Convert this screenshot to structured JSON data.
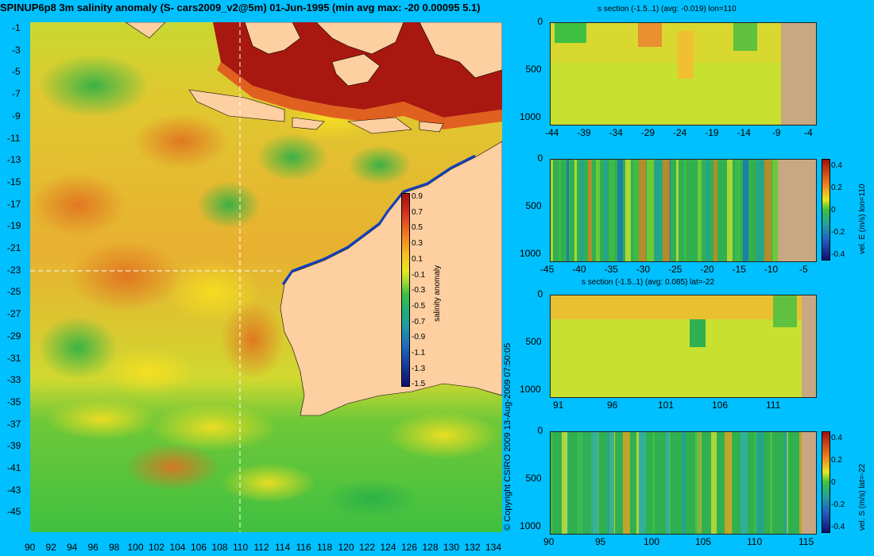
{
  "map": {
    "title": "SPINUP6p8 3m salinity anomaly (S- cars2009_v2@5m) 01-Jun-1995 (min avg max: -20 0.00095 5.1)",
    "y_ticks": [
      "-1",
      "-3",
      "-5",
      "-7",
      "-9",
      "-11",
      "-13",
      "-15",
      "-17",
      "-19",
      "-21",
      "-23",
      "-25",
      "-27",
      "-29",
      "-31",
      "-33",
      "-35",
      "-37",
      "-39",
      "-41",
      "-43",
      "-45"
    ],
    "x_ticks": [
      "90",
      "92",
      "94",
      "96",
      "98",
      "100",
      "102",
      "104",
      "106",
      "108",
      "110",
      "112",
      "114",
      "116",
      "118",
      "120",
      "122",
      "124",
      "126",
      "128",
      "130",
      "132",
      "134"
    ],
    "colorbar_label": "salinity anomaly",
    "colorbar_ticks": [
      "0.9",
      "0.7",
      "0.5",
      "0.3",
      "0.1",
      "-0.1",
      "-0.3",
      "-0.5",
      "-0.7",
      "-0.9",
      "-1.1",
      "-1.3",
      "-1.5"
    ],
    "copyright": "© Copyright CSIRO 2009  13-Aug-2009 07:50:05",
    "colors": {
      "land": "#fecfa0",
      "ocean_high": "#a01010",
      "ocean_mid": "#d8e030",
      "ocean_low": "#30c040",
      "deep_low": "#101080"
    }
  },
  "panels": {
    "p1": {
      "title": "s section (-1.5..1) (avg: -0.019) lon=110",
      "y_ticks": [
        "0",
        "500",
        "1000"
      ],
      "x_ticks": [
        "-44",
        "-39",
        "-34",
        "-29",
        "-24",
        "-19",
        "-14",
        "-9",
        "-4"
      ]
    },
    "p2": {
      "title": "",
      "y_ticks": [
        "0",
        "500",
        "1000"
      ],
      "x_ticks": [
        "-45",
        "-40",
        "-35",
        "-30",
        "-25",
        "-20",
        "-15",
        "-10",
        "-5"
      ],
      "cb_label": "vel. E (m/s) lon=110",
      "cb_ticks": [
        "0.4",
        "0.2",
        "0",
        "-0.2",
        "-0.4"
      ]
    },
    "p3": {
      "title": "s section (-1.5..1) (avg: 0.085) lat=-22",
      "y_ticks": [
        "0",
        "500",
        "1000"
      ],
      "x_ticks": [
        "91",
        "96",
        "101",
        "106",
        "111"
      ]
    },
    "p4": {
      "title": "",
      "y_ticks": [
        "0",
        "500",
        "1000"
      ],
      "x_ticks": [
        "90",
        "95",
        "100",
        "105",
        "110",
        "115"
      ],
      "cb_label": "vel. S (m/s) lat=-22",
      "cb_ticks": [
        "0.4",
        "0.2",
        "0",
        "-0.2",
        "-0.4"
      ]
    }
  }
}
